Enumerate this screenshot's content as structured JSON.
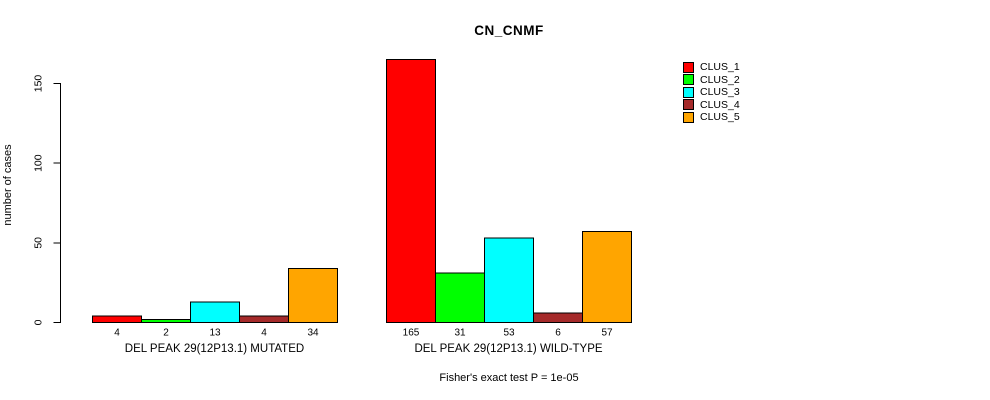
{
  "chart_data": {
    "type": "bar",
    "title": "CN_CNMF",
    "ylabel": "number of cases",
    "yticks": [
      0,
      50,
      100,
      150
    ],
    "ylim": [
      0,
      165
    ],
    "grid": false,
    "legend_position": "top-right",
    "categories": [
      "DEL PEAK 29(12P13.1) MUTATED",
      "DEL PEAK 29(12P13.1) WILD-TYPE"
    ],
    "series": [
      {
        "name": "CLUS_1",
        "color": "#FF0000",
        "values": [
          4,
          165
        ]
      },
      {
        "name": "CLUS_2",
        "color": "#00FF00",
        "values": [
          2,
          31
        ]
      },
      {
        "name": "CLUS_3",
        "color": "#00FFFF",
        "values": [
          13,
          53
        ]
      },
      {
        "name": "CLUS_4",
        "color": "#A52A2A",
        "values": [
          4,
          6
        ]
      },
      {
        "name": "CLUS_5",
        "color": "#FFA500",
        "values": [
          34,
          57
        ]
      }
    ],
    "bar_value_labels": [
      [
        "4",
        "2",
        "13",
        "4",
        "34"
      ],
      [
        "165",
        "31",
        "53",
        "6",
        "57"
      ]
    ],
    "footer": "Fisher's exact test P = 1e-05",
    "colors": {
      "axis": "#000000",
      "background": "#FFFFFF",
      "bar_border": "#000000"
    }
  }
}
